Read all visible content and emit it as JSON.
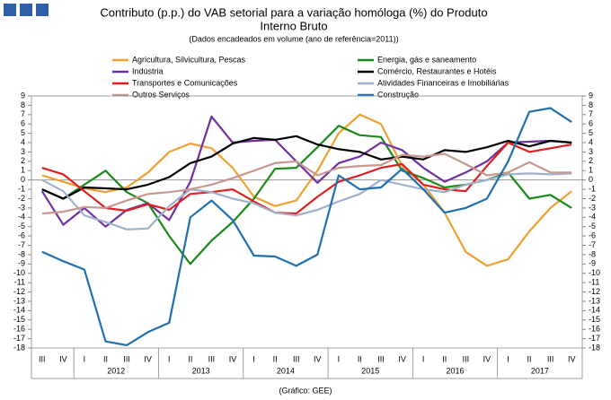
{
  "chart_data": {
    "type": "line",
    "title": [
      "Contributo (p.p.) do VAB setorial para a variação homóloga (%) do Produto",
      "Interno Bruto"
    ],
    "subtitle": "(Dados encadeados em volume (ano de referência=2011))",
    "source": "(Gráfico: GEE)",
    "categories": [
      "III",
      "IV",
      "I",
      "II",
      "III",
      "IV",
      "I",
      "II",
      "III",
      "IV",
      "I",
      "II",
      "III",
      "IV",
      "I",
      "II",
      "III",
      "IV",
      "I",
      "II",
      "III",
      "IV",
      "I",
      "II",
      "III",
      "IV"
    ],
    "years": [
      "2012",
      "2013",
      "2014",
      "2015",
      "2016",
      "2017"
    ],
    "ylim": [
      -18,
      9
    ],
    "yticks": [
      9,
      8,
      7,
      6,
      5,
      4,
      3,
      2,
      1,
      0,
      -1,
      -2,
      -3,
      -4,
      -5,
      -6,
      -7,
      -8,
      -9,
      -10,
      -11,
      -12,
      -13,
      -14,
      -15,
      -16,
      -17,
      -18
    ],
    "series": [
      {
        "name": "Agricultura, Silvicultura, Pescas",
        "color": "#f0a030",
        "values": [
          0.5,
          -0.2,
          -0.9,
          -1.3,
          -0.8,
          0.8,
          3.0,
          3.9,
          3.4,
          1.3,
          -1.8,
          -2.8,
          -2.2,
          1.0,
          5.0,
          7.0,
          6.0,
          1.5,
          -0.5,
          -3.5,
          -7.7,
          -9.2,
          -8.5,
          -5.5,
          -3.0,
          -1.2
        ]
      },
      {
        "name": "Energia, gás e saneamento",
        "color": "#1a8a1a",
        "values": [
          -1.0,
          -2.0,
          -0.5,
          1.0,
          -1.3,
          -2.5,
          -6.0,
          -9.0,
          -6.5,
          -4.5,
          -2.0,
          1.2,
          1.3,
          3.5,
          5.8,
          4.8,
          4.6,
          1.0,
          0.2,
          -0.8,
          -0.5,
          0.0,
          0.8,
          -2.0,
          -1.6,
          -3.0
        ]
      },
      {
        "name": "Indústria",
        "color": "#7030a0",
        "values": [
          -1.2,
          -4.8,
          -3.0,
          -5.0,
          -3.2,
          -2.5,
          -4.3,
          -0.2,
          6.8,
          4.0,
          4.2,
          4.3,
          2.0,
          -0.3,
          1.8,
          2.5,
          4.0,
          3.2,
          1.3,
          -0.2,
          0.8,
          2.0,
          4.0,
          4.1,
          4.2,
          4.0
        ]
      },
      {
        "name": "Comércio, Restaurantes e Hotéis",
        "color": "#000000",
        "values": [
          -1.0,
          -2.0,
          -0.8,
          -0.9,
          -1.0,
          -0.5,
          0.3,
          1.8,
          2.5,
          3.9,
          4.5,
          4.3,
          4.7,
          3.8,
          3.3,
          3.0,
          2.2,
          2.5,
          2.2,
          3.2,
          3.0,
          3.5,
          4.2,
          3.6,
          4.2,
          4.0
        ]
      },
      {
        "name": "Transportes e Comunicações",
        "color": "#e02020",
        "values": [
          1.3,
          0.6,
          -1.2,
          -3.0,
          -3.3,
          -2.6,
          -3.2,
          -1.5,
          -1.3,
          -1.0,
          -2.3,
          -3.5,
          -3.6,
          -1.8,
          -0.2,
          0.5,
          1.3,
          1.7,
          -0.5,
          -1.0,
          -1.2,
          1.5,
          4.0,
          3.0,
          3.4,
          3.8
        ]
      },
      {
        "name": "Atividades Financeiras e Imobiliárias",
        "color": "#a0b0c8",
        "values": [
          0.0,
          -1.2,
          -3.8,
          -4.5,
          -5.3,
          -5.2,
          -2.8,
          -1.0,
          -1.3,
          -2.0,
          -2.5,
          -3.5,
          -3.8,
          -3.2,
          -2.3,
          -1.5,
          0.0,
          -0.5,
          -1.0,
          -1.3,
          -0.5,
          0.0,
          0.6,
          0.7,
          0.6,
          0.7
        ]
      },
      {
        "name": "Outros Serviços",
        "color": "#c89890",
        "values": [
          -3.6,
          -3.4,
          -2.9,
          -3.0,
          -2.2,
          -1.5,
          -1.3,
          -1.0,
          -0.5,
          0.2,
          1.0,
          1.8,
          2.0,
          0.5,
          1.3,
          1.5,
          1.6,
          2.7,
          2.5,
          2.8,
          1.7,
          0.5,
          0.8,
          1.9,
          0.8,
          0.8
        ]
      },
      {
        "name": "Construção",
        "color": "#2070b0",
        "values": [
          -7.7,
          -8.7,
          -9.6,
          -17.3,
          -17.7,
          -16.3,
          -15.3,
          -4.0,
          -2.2,
          -4.3,
          -8.1,
          -8.2,
          -9.2,
          -8.0,
          0.5,
          -1.0,
          -0.8,
          1.2,
          -1.0,
          -3.5,
          -3.0,
          -2.0,
          2.0,
          7.3,
          7.7,
          6.2
        ]
      }
    ]
  }
}
